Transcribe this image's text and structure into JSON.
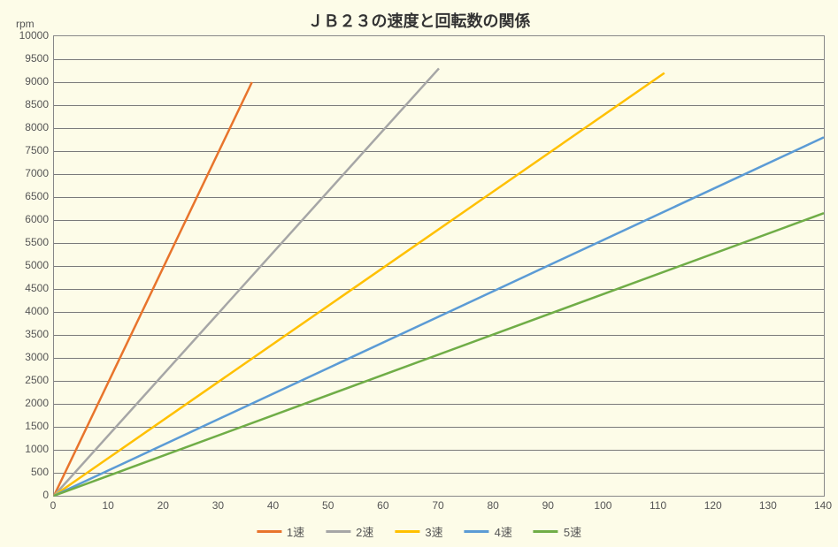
{
  "chart": {
    "type": "line",
    "title": "ＪＢ２３の速度と回転数の関係",
    "y_axis_label": "rpm",
    "background_color": "#fdfce8",
    "grid_color": "#7a7a7a",
    "border_color": "#888888",
    "title_fontsize": 18,
    "tick_fontsize": 12,
    "legend_fontsize": 13,
    "xlim": [
      0,
      140
    ],
    "ylim": [
      0,
      10000
    ],
    "x_ticks": [
      0,
      10,
      20,
      30,
      40,
      50,
      60,
      70,
      80,
      90,
      100,
      110,
      120,
      130,
      140
    ],
    "y_ticks": [
      0,
      500,
      1000,
      1500,
      2000,
      2500,
      3000,
      3500,
      4000,
      4500,
      5000,
      5500,
      6000,
      6500,
      7000,
      7500,
      8000,
      8500,
      9000,
      9500,
      10000
    ],
    "line_width": 2.5,
    "series": [
      {
        "name": "1速",
        "color": "#e8742c",
        "points": [
          [
            0,
            0
          ],
          [
            36,
            9000
          ]
        ]
      },
      {
        "name": "2速",
        "color": "#a6a6a6",
        "points": [
          [
            0,
            0
          ],
          [
            70,
            9300
          ]
        ]
      },
      {
        "name": "3速",
        "color": "#ffc000",
        "points": [
          [
            0,
            0
          ],
          [
            111,
            9200
          ]
        ]
      },
      {
        "name": "4速",
        "color": "#5b9bd5",
        "points": [
          [
            0,
            0
          ],
          [
            140,
            7800
          ]
        ]
      },
      {
        "name": "5速",
        "color": "#70ad47",
        "points": [
          [
            0,
            0
          ],
          [
            140,
            6150
          ]
        ]
      }
    ]
  }
}
